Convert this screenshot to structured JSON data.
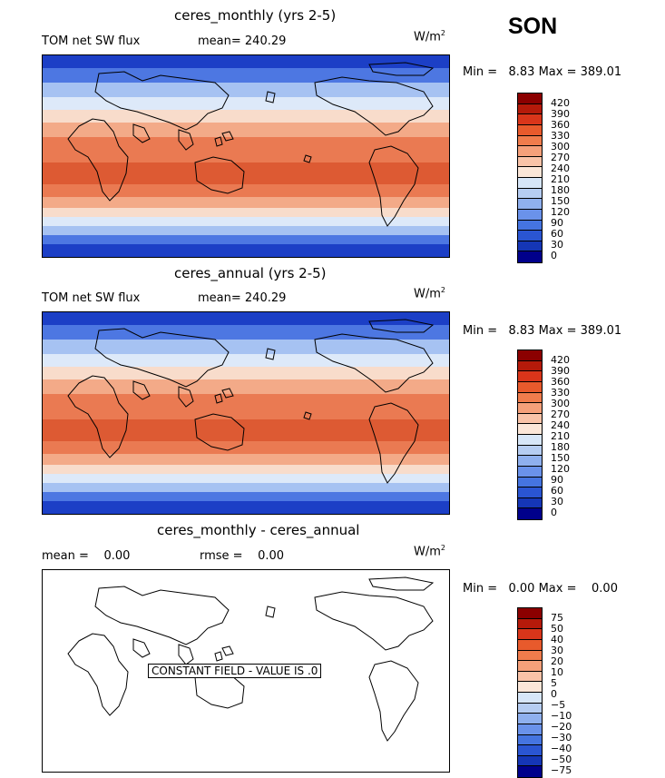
{
  "season": "SON",
  "units": "W/m",
  "units_sup": "2",
  "panels": [
    {
      "title": "ceres_monthly (yrs 2-5)",
      "left_label": "TOM net SW flux",
      "stat_label": "mean=",
      "stat_value": "240.29",
      "min_label": "Min =",
      "min_value": "8.83",
      "max_label": "Max =",
      "max_value": "389.01"
    },
    {
      "title": "ceres_annual (yrs 2-5)",
      "left_label": "TOM net SW flux",
      "stat_label": "mean=",
      "stat_value": "240.29",
      "min_label": "Min =",
      "min_value": "8.83",
      "max_label": "Max =",
      "max_value": "389.01"
    },
    {
      "title": "ceres_monthly - ceres_annual",
      "mean_label": "mean =",
      "mean_value": "0.00",
      "rmse_label": "rmse =",
      "rmse_value": "0.00",
      "min_label": "Min =",
      "min_value": "0.00",
      "max_label": "Max =",
      "max_value": "0.00",
      "constant_note": "CONSTANT FIELD - VALUE IS .0"
    }
  ],
  "colorbar_flux": {
    "labels": [
      "420",
      "390",
      "360",
      "330",
      "300",
      "270",
      "240",
      "210",
      "180",
      "150",
      "120",
      "90",
      "60",
      "30",
      "0"
    ],
    "colors": [
      "#8b0000",
      "#b51a0a",
      "#d9351a",
      "#e85a2c",
      "#f07c4c",
      "#f5a07a",
      "#f9c3a8",
      "#fbe6d8",
      "#d7e6f8",
      "#b6cdf2",
      "#8fb0ee",
      "#6a92ea",
      "#4574e0",
      "#2a55d2",
      "#1536b6",
      "#00008b"
    ]
  },
  "colorbar_diff": {
    "labels": [
      "75",
      "50",
      "40",
      "30",
      "20",
      "10",
      "5",
      "0",
      "−5",
      "−10",
      "−20",
      "−30",
      "−40",
      "−50",
      "−75"
    ],
    "colors": [
      "#8b0000",
      "#b51a0a",
      "#d9351a",
      "#e85a2c",
      "#f07c4c",
      "#f5a07a",
      "#f9c3a8",
      "#fbe6d8",
      "#d7e6f8",
      "#b6cdf2",
      "#8fb0ee",
      "#6a92ea",
      "#4574e0",
      "#2a55d2",
      "#1536b6",
      "#00008b"
    ]
  },
  "map_layers": {
    "colors": [
      "#1c3fc6",
      "#4d77e2",
      "#a6c2f2",
      "#dde9f9",
      "#f8dccb",
      "#f3aa88",
      "#ea7a52",
      "#dd5a33"
    ]
  }
}
